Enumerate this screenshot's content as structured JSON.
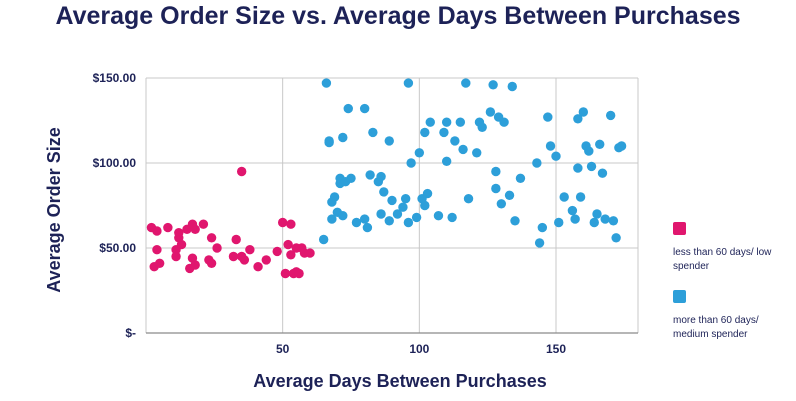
{
  "chart_data": {
    "type": "scatter",
    "title": "Average Order Size vs. Average Days Between Purchases",
    "xlabel": "Average Days Between Purchases",
    "ylabel": "Average Order Size",
    "xlim": [
      0,
      180
    ],
    "ylim": [
      0,
      150
    ],
    "x_ticks": [
      {
        "value": 50,
        "label": "50"
      },
      {
        "value": 100,
        "label": "100"
      },
      {
        "value": 150,
        "label": "150"
      }
    ],
    "y_ticks": [
      {
        "value": 0,
        "label": "$-"
      },
      {
        "value": 50,
        "label": "$50.00"
      },
      {
        "value": 100,
        "label": "$100.00"
      },
      {
        "value": 150,
        "label": "$150.00"
      }
    ],
    "grid": true,
    "legend_position": "right",
    "series": [
      {
        "name": "less than 60 days/ low spender",
        "color": "#e0166e",
        "points": [
          [
            2,
            62
          ],
          [
            3,
            39
          ],
          [
            4,
            60
          ],
          [
            4,
            49
          ],
          [
            5,
            41
          ],
          [
            8,
            62
          ],
          [
            11,
            45
          ],
          [
            11,
            49
          ],
          [
            12,
            59
          ],
          [
            12,
            56
          ],
          [
            13,
            52
          ],
          [
            15,
            61
          ],
          [
            16,
            38
          ],
          [
            17,
            44
          ],
          [
            17,
            64
          ],
          [
            18,
            61
          ],
          [
            18,
            40
          ],
          [
            21,
            64
          ],
          [
            23,
            43
          ],
          [
            24,
            56
          ],
          [
            24,
            41
          ],
          [
            26,
            50
          ],
          [
            32,
            45
          ],
          [
            33,
            55
          ],
          [
            35,
            45
          ],
          [
            35,
            95
          ],
          [
            36,
            43
          ],
          [
            38,
            49
          ],
          [
            41,
            39
          ],
          [
            44,
            43
          ],
          [
            48,
            48
          ],
          [
            50,
            65
          ],
          [
            51,
            35
          ],
          [
            52,
            52
          ],
          [
            53,
            64
          ],
          [
            53,
            46
          ],
          [
            54,
            35
          ],
          [
            55,
            36
          ],
          [
            55,
            50
          ],
          [
            56,
            35
          ],
          [
            57,
            50
          ],
          [
            58,
            47
          ],
          [
            60,
            47
          ]
        ]
      },
      {
        "name": "more than 60 days/ medium spender",
        "color": "#2d9fd9",
        "points": [
          [
            65,
            55
          ],
          [
            66,
            147
          ],
          [
            67,
            112
          ],
          [
            67,
            113
          ],
          [
            68,
            67
          ],
          [
            68,
            77
          ],
          [
            69,
            80
          ],
          [
            70,
            71
          ],
          [
            71,
            88
          ],
          [
            71,
            91
          ],
          [
            72,
            69
          ],
          [
            72,
            115
          ],
          [
            73,
            89
          ],
          [
            74,
            132
          ],
          [
            75,
            91
          ],
          [
            77,
            65
          ],
          [
            80,
            132
          ],
          [
            80,
            67
          ],
          [
            81,
            62
          ],
          [
            82,
            93
          ],
          [
            83,
            118
          ],
          [
            85,
            89
          ],
          [
            86,
            70
          ],
          [
            86,
            92
          ],
          [
            87,
            83
          ],
          [
            89,
            66
          ],
          [
            89,
            113
          ],
          [
            90,
            78
          ],
          [
            92,
            70
          ],
          [
            94,
            74
          ],
          [
            95,
            79
          ],
          [
            96,
            147
          ],
          [
            96,
            65
          ],
          [
            97,
            100
          ],
          [
            99,
            68
          ],
          [
            100,
            106
          ],
          [
            101,
            79
          ],
          [
            102,
            118
          ],
          [
            102,
            75
          ],
          [
            103,
            82
          ],
          [
            104,
            124
          ],
          [
            107,
            69
          ],
          [
            109,
            118
          ],
          [
            110,
            101
          ],
          [
            110,
            124
          ],
          [
            112,
            68
          ],
          [
            113,
            113
          ],
          [
            115,
            124
          ],
          [
            116,
            108
          ],
          [
            117,
            147
          ],
          [
            118,
            79
          ],
          [
            121,
            106
          ],
          [
            122,
            124
          ],
          [
            123,
            121
          ],
          [
            126,
            130
          ],
          [
            127,
            146
          ],
          [
            128,
            85
          ],
          [
            128,
            95
          ],
          [
            129,
            127
          ],
          [
            130,
            76
          ],
          [
            131,
            124
          ],
          [
            133,
            81
          ],
          [
            134,
            145
          ],
          [
            135,
            66
          ],
          [
            137,
            91
          ],
          [
            143,
            100
          ],
          [
            144,
            53
          ],
          [
            145,
            62
          ],
          [
            147,
            127
          ],
          [
            148,
            110
          ],
          [
            150,
            104
          ],
          [
            151,
            65
          ],
          [
            153,
            80
          ],
          [
            156,
            72
          ],
          [
            157,
            67
          ],
          [
            158,
            97
          ],
          [
            158,
            126
          ],
          [
            159,
            80
          ],
          [
            160,
            130
          ],
          [
            161,
            110
          ],
          [
            162,
            107
          ],
          [
            163,
            98
          ],
          [
            164,
            65
          ],
          [
            165,
            70
          ],
          [
            166,
            111
          ],
          [
            167,
            94
          ],
          [
            168,
            67
          ],
          [
            170,
            128
          ],
          [
            171,
            66
          ],
          [
            172,
            56
          ],
          [
            173,
            109
          ],
          [
            174,
            110
          ]
        ]
      }
    ]
  }
}
